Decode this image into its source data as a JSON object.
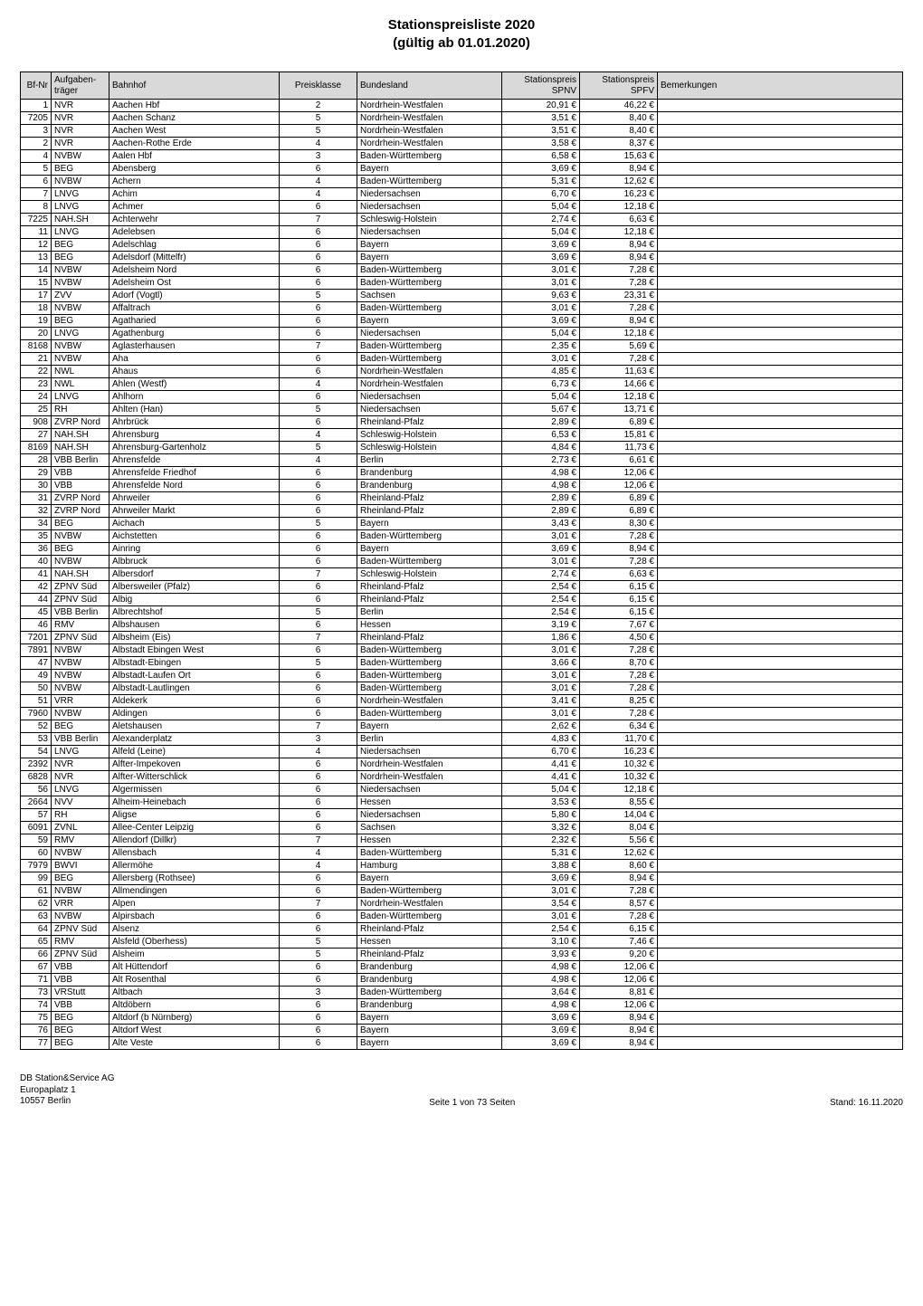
{
  "title_line1": "Stationspreisliste 2020",
  "title_line2": "(gültig ab 01.01.2020)",
  "columns": {
    "bfnr": "Bf-Nr",
    "traeger": "Aufgaben-\nträger",
    "bahnhof": "Bahnhof",
    "pk": "Preisklasse",
    "land": "Bundesland",
    "spnv": "Stationspreis\nSPNV",
    "spfv": "Stationspreis\nSPFV",
    "bem": "Bemerkungen"
  },
  "rows": [
    {
      "bfnr": "1",
      "traeger": "NVR",
      "bahnhof": "Aachen Hbf",
      "pk": "2",
      "land": "Nordrhein-Westfalen",
      "spnv": "20,91 €",
      "spfv": "46,22 €",
      "bem": ""
    },
    {
      "bfnr": "7205",
      "traeger": "NVR",
      "bahnhof": "Aachen Schanz",
      "pk": "5",
      "land": "Nordrhein-Westfalen",
      "spnv": "3,51 €",
      "spfv": "8,40 €",
      "bem": ""
    },
    {
      "bfnr": "3",
      "traeger": "NVR",
      "bahnhof": "Aachen West",
      "pk": "5",
      "land": "Nordrhein-Westfalen",
      "spnv": "3,51 €",
      "spfv": "8,40 €",
      "bem": ""
    },
    {
      "bfnr": "2",
      "traeger": "NVR",
      "bahnhof": "Aachen-Rothe Erde",
      "pk": "4",
      "land": "Nordrhein-Westfalen",
      "spnv": "3,58 €",
      "spfv": "8,37 €",
      "bem": ""
    },
    {
      "bfnr": "4",
      "traeger": "NVBW",
      "bahnhof": "Aalen Hbf",
      "pk": "3",
      "land": "Baden-Württemberg",
      "spnv": "6,58 €",
      "spfv": "15,63 €",
      "bem": ""
    },
    {
      "bfnr": "5",
      "traeger": "BEG",
      "bahnhof": "Abensberg",
      "pk": "6",
      "land": "Bayern",
      "spnv": "3,69 €",
      "spfv": "8,94 €",
      "bem": ""
    },
    {
      "bfnr": "6",
      "traeger": "NVBW",
      "bahnhof": "Achern",
      "pk": "4",
      "land": "Baden-Württemberg",
      "spnv": "5,31 €",
      "spfv": "12,62 €",
      "bem": ""
    },
    {
      "bfnr": "7",
      "traeger": "LNVG",
      "bahnhof": "Achim",
      "pk": "4",
      "land": "Niedersachsen",
      "spnv": "6,70 €",
      "spfv": "16,23 €",
      "bem": ""
    },
    {
      "bfnr": "8",
      "traeger": "LNVG",
      "bahnhof": "Achmer",
      "pk": "6",
      "land": "Niedersachsen",
      "spnv": "5,04 €",
      "spfv": "12,18 €",
      "bem": ""
    },
    {
      "bfnr": "7225",
      "traeger": "NAH.SH",
      "bahnhof": "Achterwehr",
      "pk": "7",
      "land": "Schleswig-Holstein",
      "spnv": "2,74 €",
      "spfv": "6,63 €",
      "bem": ""
    },
    {
      "bfnr": "11",
      "traeger": "LNVG",
      "bahnhof": "Adelebsen",
      "pk": "6",
      "land": "Niedersachsen",
      "spnv": "5,04 €",
      "spfv": "12,18 €",
      "bem": ""
    },
    {
      "bfnr": "12",
      "traeger": "BEG",
      "bahnhof": "Adelschlag",
      "pk": "6",
      "land": "Bayern",
      "spnv": "3,69 €",
      "spfv": "8,94 €",
      "bem": ""
    },
    {
      "bfnr": "13",
      "traeger": "BEG",
      "bahnhof": "Adelsdorf (Mittelfr)",
      "pk": "6",
      "land": "Bayern",
      "spnv": "3,69 €",
      "spfv": "8,94 €",
      "bem": ""
    },
    {
      "bfnr": "14",
      "traeger": "NVBW",
      "bahnhof": "Adelsheim Nord",
      "pk": "6",
      "land": "Baden-Württemberg",
      "spnv": "3,01 €",
      "spfv": "7,28 €",
      "bem": ""
    },
    {
      "bfnr": "15",
      "traeger": "NVBW",
      "bahnhof": "Adelsheim Ost",
      "pk": "6",
      "land": "Baden-Württemberg",
      "spnv": "3,01 €",
      "spfv": "7,28 €",
      "bem": ""
    },
    {
      "bfnr": "17",
      "traeger": "ZVV",
      "bahnhof": "Adorf (Vogtl)",
      "pk": "5",
      "land": "Sachsen",
      "spnv": "9,63 €",
      "spfv": "23,31 €",
      "bem": ""
    },
    {
      "bfnr": "18",
      "traeger": "NVBW",
      "bahnhof": "Affaltrach",
      "pk": "6",
      "land": "Baden-Württemberg",
      "spnv": "3,01 €",
      "spfv": "7,28 €",
      "bem": ""
    },
    {
      "bfnr": "19",
      "traeger": "BEG",
      "bahnhof": "Agatharied",
      "pk": "6",
      "land": "Bayern",
      "spnv": "3,69 €",
      "spfv": "8,94 €",
      "bem": ""
    },
    {
      "bfnr": "20",
      "traeger": "LNVG",
      "bahnhof": "Agathenburg",
      "pk": "6",
      "land": "Niedersachsen",
      "spnv": "5,04 €",
      "spfv": "12,18 €",
      "bem": ""
    },
    {
      "bfnr": "8168",
      "traeger": "NVBW",
      "bahnhof": "Aglasterhausen",
      "pk": "7",
      "land": "Baden-Württemberg",
      "spnv": "2,35 €",
      "spfv": "5,69 €",
      "bem": ""
    },
    {
      "bfnr": "21",
      "traeger": "NVBW",
      "bahnhof": "Aha",
      "pk": "6",
      "land": "Baden-Württemberg",
      "spnv": "3,01 €",
      "spfv": "7,28 €",
      "bem": ""
    },
    {
      "bfnr": "22",
      "traeger": "NWL",
      "bahnhof": "Ahaus",
      "pk": "6",
      "land": "Nordrhein-Westfalen",
      "spnv": "4,85 €",
      "spfv": "11,63 €",
      "bem": ""
    },
    {
      "bfnr": "23",
      "traeger": "NWL",
      "bahnhof": "Ahlen (Westf)",
      "pk": "4",
      "land": "Nordrhein-Westfalen",
      "spnv": "6,73 €",
      "spfv": "14,66 €",
      "bem": ""
    },
    {
      "bfnr": "24",
      "traeger": "LNVG",
      "bahnhof": "Ahlhorn",
      "pk": "6",
      "land": "Niedersachsen",
      "spnv": "5,04 €",
      "spfv": "12,18 €",
      "bem": ""
    },
    {
      "bfnr": "25",
      "traeger": "RH",
      "bahnhof": "Ahlten (Han)",
      "pk": "5",
      "land": "Niedersachsen",
      "spnv": "5,67 €",
      "spfv": "13,71 €",
      "bem": ""
    },
    {
      "bfnr": "908",
      "traeger": "ZVRP Nord",
      "bahnhof": "Ahrbrück",
      "pk": "6",
      "land": "Rheinland-Pfalz",
      "spnv": "2,89 €",
      "spfv": "6,89 €",
      "bem": ""
    },
    {
      "bfnr": "27",
      "traeger": "NAH.SH",
      "bahnhof": "Ahrensburg",
      "pk": "4",
      "land": "Schleswig-Holstein",
      "spnv": "6,53 €",
      "spfv": "15,81 €",
      "bem": ""
    },
    {
      "bfnr": "8169",
      "traeger": "NAH.SH",
      "bahnhof": "Ahrensburg-Gartenholz",
      "pk": "5",
      "land": "Schleswig-Holstein",
      "spnv": "4,84 €",
      "spfv": "11,73 €",
      "bem": ""
    },
    {
      "bfnr": "28",
      "traeger": "VBB Berlin",
      "bahnhof": "Ahrensfelde",
      "pk": "4",
      "land": "Berlin",
      "spnv": "2,73 €",
      "spfv": "6,61 €",
      "bem": ""
    },
    {
      "bfnr": "29",
      "traeger": "VBB",
      "bahnhof": "Ahrensfelde Friedhof",
      "pk": "6",
      "land": "Brandenburg",
      "spnv": "4,98 €",
      "spfv": "12,06 €",
      "bem": ""
    },
    {
      "bfnr": "30",
      "traeger": "VBB",
      "bahnhof": "Ahrensfelde Nord",
      "pk": "6",
      "land": "Brandenburg",
      "spnv": "4,98 €",
      "spfv": "12,06 €",
      "bem": ""
    },
    {
      "bfnr": "31",
      "traeger": "ZVRP Nord",
      "bahnhof": "Ahrweiler",
      "pk": "6",
      "land": "Rheinland-Pfalz",
      "spnv": "2,89 €",
      "spfv": "6,89 €",
      "bem": ""
    },
    {
      "bfnr": "32",
      "traeger": "ZVRP Nord",
      "bahnhof": "Ahrweiler Markt",
      "pk": "6",
      "land": "Rheinland-Pfalz",
      "spnv": "2,89 €",
      "spfv": "6,89 €",
      "bem": ""
    },
    {
      "bfnr": "34",
      "traeger": "BEG",
      "bahnhof": "Aichach",
      "pk": "5",
      "land": "Bayern",
      "spnv": "3,43 €",
      "spfv": "8,30 €",
      "bem": ""
    },
    {
      "bfnr": "35",
      "traeger": "NVBW",
      "bahnhof": "Aichstetten",
      "pk": "6",
      "land": "Baden-Württemberg",
      "spnv": "3,01 €",
      "spfv": "7,28 €",
      "bem": ""
    },
    {
      "bfnr": "36",
      "traeger": "BEG",
      "bahnhof": "Ainring",
      "pk": "6",
      "land": "Bayern",
      "spnv": "3,69 €",
      "spfv": "8,94 €",
      "bem": ""
    },
    {
      "bfnr": "40",
      "traeger": "NVBW",
      "bahnhof": "Albbruck",
      "pk": "6",
      "land": "Baden-Württemberg",
      "spnv": "3,01 €",
      "spfv": "7,28 €",
      "bem": ""
    },
    {
      "bfnr": "41",
      "traeger": "NAH.SH",
      "bahnhof": "Albersdorf",
      "pk": "7",
      "land": "Schleswig-Holstein",
      "spnv": "2,74 €",
      "spfv": "6,63 €",
      "bem": ""
    },
    {
      "bfnr": "42",
      "traeger": "ZPNV Süd",
      "bahnhof": "Albersweiler (Pfalz)",
      "pk": "6",
      "land": "Rheinland-Pfalz",
      "spnv": "2,54 €",
      "spfv": "6,15 €",
      "bem": ""
    },
    {
      "bfnr": "44",
      "traeger": "ZPNV Süd",
      "bahnhof": "Albig",
      "pk": "6",
      "land": "Rheinland-Pfalz",
      "spnv": "2,54 €",
      "spfv": "6,15 €",
      "bem": ""
    },
    {
      "bfnr": "45",
      "traeger": "VBB Berlin",
      "bahnhof": "Albrechtshof",
      "pk": "5",
      "land": "Berlin",
      "spnv": "2,54 €",
      "spfv": "6,15 €",
      "bem": ""
    },
    {
      "bfnr": "46",
      "traeger": "RMV",
      "bahnhof": "Albshausen",
      "pk": "6",
      "land": "Hessen",
      "spnv": "3,19 €",
      "spfv": "7,67 €",
      "bem": ""
    },
    {
      "bfnr": "7201",
      "traeger": "ZPNV Süd",
      "bahnhof": "Albsheim (Eis)",
      "pk": "7",
      "land": "Rheinland-Pfalz",
      "spnv": "1,86 €",
      "spfv": "4,50 €",
      "bem": ""
    },
    {
      "bfnr": "7891",
      "traeger": "NVBW",
      "bahnhof": "Albstadt Ebingen West",
      "pk": "6",
      "land": "Baden-Württemberg",
      "spnv": "3,01 €",
      "spfv": "7,28 €",
      "bem": ""
    },
    {
      "bfnr": "47",
      "traeger": "NVBW",
      "bahnhof": "Albstadt-Ebingen",
      "pk": "5",
      "land": "Baden-Württemberg",
      "spnv": "3,66 €",
      "spfv": "8,70 €",
      "bem": ""
    },
    {
      "bfnr": "49",
      "traeger": "NVBW",
      "bahnhof": "Albstadt-Laufen Ort",
      "pk": "6",
      "land": "Baden-Württemberg",
      "spnv": "3,01 €",
      "spfv": "7,28 €",
      "bem": ""
    },
    {
      "bfnr": "50",
      "traeger": "NVBW",
      "bahnhof": "Albstadt-Lautlingen",
      "pk": "6",
      "land": "Baden-Württemberg",
      "spnv": "3,01 €",
      "spfv": "7,28 €",
      "bem": ""
    },
    {
      "bfnr": "51",
      "traeger": "VRR",
      "bahnhof": "Aldekerk",
      "pk": "6",
      "land": "Nordrhein-Westfalen",
      "spnv": "3,41 €",
      "spfv": "8,25 €",
      "bem": ""
    },
    {
      "bfnr": "7960",
      "traeger": "NVBW",
      "bahnhof": "Aldingen",
      "pk": "6",
      "land": "Baden-Württemberg",
      "spnv": "3,01 €",
      "spfv": "7,28 €",
      "bem": ""
    },
    {
      "bfnr": "52",
      "traeger": "BEG",
      "bahnhof": "Aletshausen",
      "pk": "7",
      "land": "Bayern",
      "spnv": "2,62 €",
      "spfv": "6,34 €",
      "bem": ""
    },
    {
      "bfnr": "53",
      "traeger": "VBB Berlin",
      "bahnhof": "Alexanderplatz",
      "pk": "3",
      "land": "Berlin",
      "spnv": "4,83 €",
      "spfv": "11,70 €",
      "bem": ""
    },
    {
      "bfnr": "54",
      "traeger": "LNVG",
      "bahnhof": "Alfeld (Leine)",
      "pk": "4",
      "land": "Niedersachsen",
      "spnv": "6,70 €",
      "spfv": "16,23 €",
      "bem": ""
    },
    {
      "bfnr": "2392",
      "traeger": "NVR",
      "bahnhof": "Alfter-Impekoven",
      "pk": "6",
      "land": "Nordrhein-Westfalen",
      "spnv": "4,41 €",
      "spfv": "10,32 €",
      "bem": ""
    },
    {
      "bfnr": "6828",
      "traeger": "NVR",
      "bahnhof": "Alfter-Witterschlick",
      "pk": "6",
      "land": "Nordrhein-Westfalen",
      "spnv": "4,41 €",
      "spfv": "10,32 €",
      "bem": ""
    },
    {
      "bfnr": "56",
      "traeger": "LNVG",
      "bahnhof": "Algermissen",
      "pk": "6",
      "land": "Niedersachsen",
      "spnv": "5,04 €",
      "spfv": "12,18 €",
      "bem": ""
    },
    {
      "bfnr": "2664",
      "traeger": "NVV",
      "bahnhof": "Alheim-Heinebach",
      "pk": "6",
      "land": "Hessen",
      "spnv": "3,53 €",
      "spfv": "8,55 €",
      "bem": ""
    },
    {
      "bfnr": "57",
      "traeger": "RH",
      "bahnhof": "Aligse",
      "pk": "6",
      "land": "Niedersachsen",
      "spnv": "5,80 €",
      "spfv": "14,04 €",
      "bem": ""
    },
    {
      "bfnr": "6091",
      "traeger": "ZVNL",
      "bahnhof": "Allee-Center Leipzig",
      "pk": "6",
      "land": "Sachsen",
      "spnv": "3,32 €",
      "spfv": "8,04 €",
      "bem": ""
    },
    {
      "bfnr": "59",
      "traeger": "RMV",
      "bahnhof": "Allendorf (Dillkr)",
      "pk": "7",
      "land": "Hessen",
      "spnv": "2,32 €",
      "spfv": "5,56 €",
      "bem": ""
    },
    {
      "bfnr": "60",
      "traeger": "NVBW",
      "bahnhof": "Allensbach",
      "pk": "4",
      "land": "Baden-Württemberg",
      "spnv": "5,31 €",
      "spfv": "12,62 €",
      "bem": ""
    },
    {
      "bfnr": "7979",
      "traeger": "BWVI",
      "bahnhof": "Allermöhe",
      "pk": "4",
      "land": "Hamburg",
      "spnv": "3,88 €",
      "spfv": "8,60 €",
      "bem": ""
    },
    {
      "bfnr": "99",
      "traeger": "BEG",
      "bahnhof": "Allersberg (Rothsee)",
      "pk": "6",
      "land": "Bayern",
      "spnv": "3,69 €",
      "spfv": "8,94 €",
      "bem": ""
    },
    {
      "bfnr": "61",
      "traeger": "NVBW",
      "bahnhof": "Allmendingen",
      "pk": "6",
      "land": "Baden-Württemberg",
      "spnv": "3,01 €",
      "spfv": "7,28 €",
      "bem": ""
    },
    {
      "bfnr": "62",
      "traeger": "VRR",
      "bahnhof": "Alpen",
      "pk": "7",
      "land": "Nordrhein-Westfalen",
      "spnv": "3,54 €",
      "spfv": "8,57 €",
      "bem": ""
    },
    {
      "bfnr": "63",
      "traeger": "NVBW",
      "bahnhof": "Alpirsbach",
      "pk": "6",
      "land": "Baden-Württemberg",
      "spnv": "3,01 €",
      "spfv": "7,28 €",
      "bem": ""
    },
    {
      "bfnr": "64",
      "traeger": "ZPNV Süd",
      "bahnhof": "Alsenz",
      "pk": "6",
      "land": "Rheinland-Pfalz",
      "spnv": "2,54 €",
      "spfv": "6,15 €",
      "bem": ""
    },
    {
      "bfnr": "65",
      "traeger": "RMV",
      "bahnhof": "Alsfeld (Oberhess)",
      "pk": "5",
      "land": "Hessen",
      "spnv": "3,10 €",
      "spfv": "7,46 €",
      "bem": ""
    },
    {
      "bfnr": "66",
      "traeger": "ZPNV Süd",
      "bahnhof": "Alsheim",
      "pk": "5",
      "land": "Rheinland-Pfalz",
      "spnv": "3,93 €",
      "spfv": "9,20 €",
      "bem": ""
    },
    {
      "bfnr": "67",
      "traeger": "VBB",
      "bahnhof": "Alt Hüttendorf",
      "pk": "6",
      "land": "Brandenburg",
      "spnv": "4,98 €",
      "spfv": "12,06 €",
      "bem": ""
    },
    {
      "bfnr": "71",
      "traeger": "VBB",
      "bahnhof": "Alt Rosenthal",
      "pk": "6",
      "land": "Brandenburg",
      "spnv": "4,98 €",
      "spfv": "12,06 €",
      "bem": ""
    },
    {
      "bfnr": "73",
      "traeger": "VRStutt",
      "bahnhof": "Altbach",
      "pk": "3",
      "land": "Baden-Württemberg",
      "spnv": "3,64 €",
      "spfv": "8,81 €",
      "bem": ""
    },
    {
      "bfnr": "74",
      "traeger": "VBB",
      "bahnhof": "Altdöbern",
      "pk": "6",
      "land": "Brandenburg",
      "spnv": "4,98 €",
      "spfv": "12,06 €",
      "bem": ""
    },
    {
      "bfnr": "75",
      "traeger": "BEG",
      "bahnhof": "Altdorf (b Nürnberg)",
      "pk": "6",
      "land": "Bayern",
      "spnv": "3,69 €",
      "spfv": "8,94 €",
      "bem": ""
    },
    {
      "bfnr": "76",
      "traeger": "BEG",
      "bahnhof": "Altdorf West",
      "pk": "6",
      "land": "Bayern",
      "spnv": "3,69 €",
      "spfv": "8,94 €",
      "bem": ""
    },
    {
      "bfnr": "77",
      "traeger": "BEG",
      "bahnhof": "Alte Veste",
      "pk": "6",
      "land": "Bayern",
      "spnv": "3,69 €",
      "spfv": "8,94 €",
      "bem": ""
    }
  ],
  "footer": {
    "company": "DB Station&Service AG",
    "address1": "Europaplatz 1",
    "address2": "10557 Berlin",
    "page": "Seite 1 von 73 Seiten",
    "date": "Stand: 16.11.2020"
  }
}
